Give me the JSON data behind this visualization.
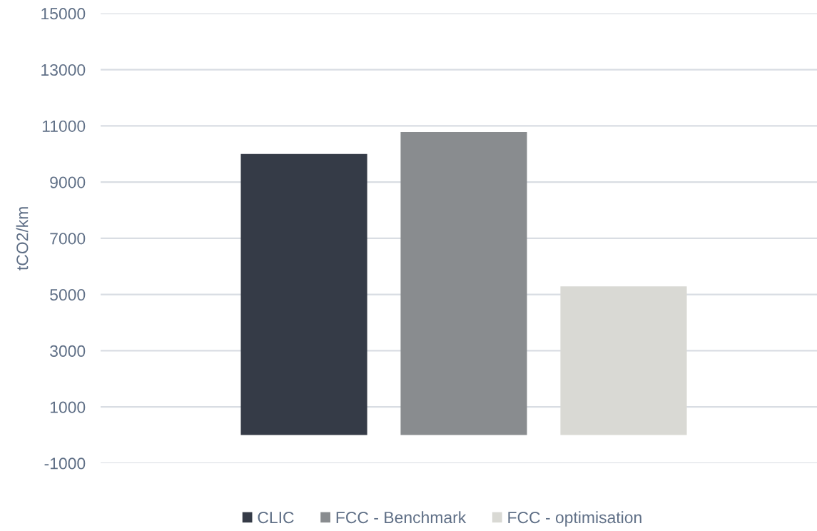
{
  "chart_data": {
    "type": "bar",
    "ylabel": "tCO2/km",
    "categories": [
      null
    ],
    "series": [
      {
        "name": "CLIC",
        "color": "#353b47",
        "values": [
          10000
        ]
      },
      {
        "name": "FCC - Benchmark",
        "color": "#898c8f",
        "values": [
          10780
        ]
      },
      {
        "name": "FCC - optimisation",
        "color": "#d9d9d4",
        "values": [
          5290
        ]
      }
    ],
    "ylim": [
      -1000,
      15000
    ],
    "yticks": [
      -1000,
      1000,
      3000,
      5000,
      7000,
      9000,
      11000,
      13000,
      15000
    ],
    "grid": "y",
    "legend": "bottom",
    "tick_labels": "y"
  }
}
